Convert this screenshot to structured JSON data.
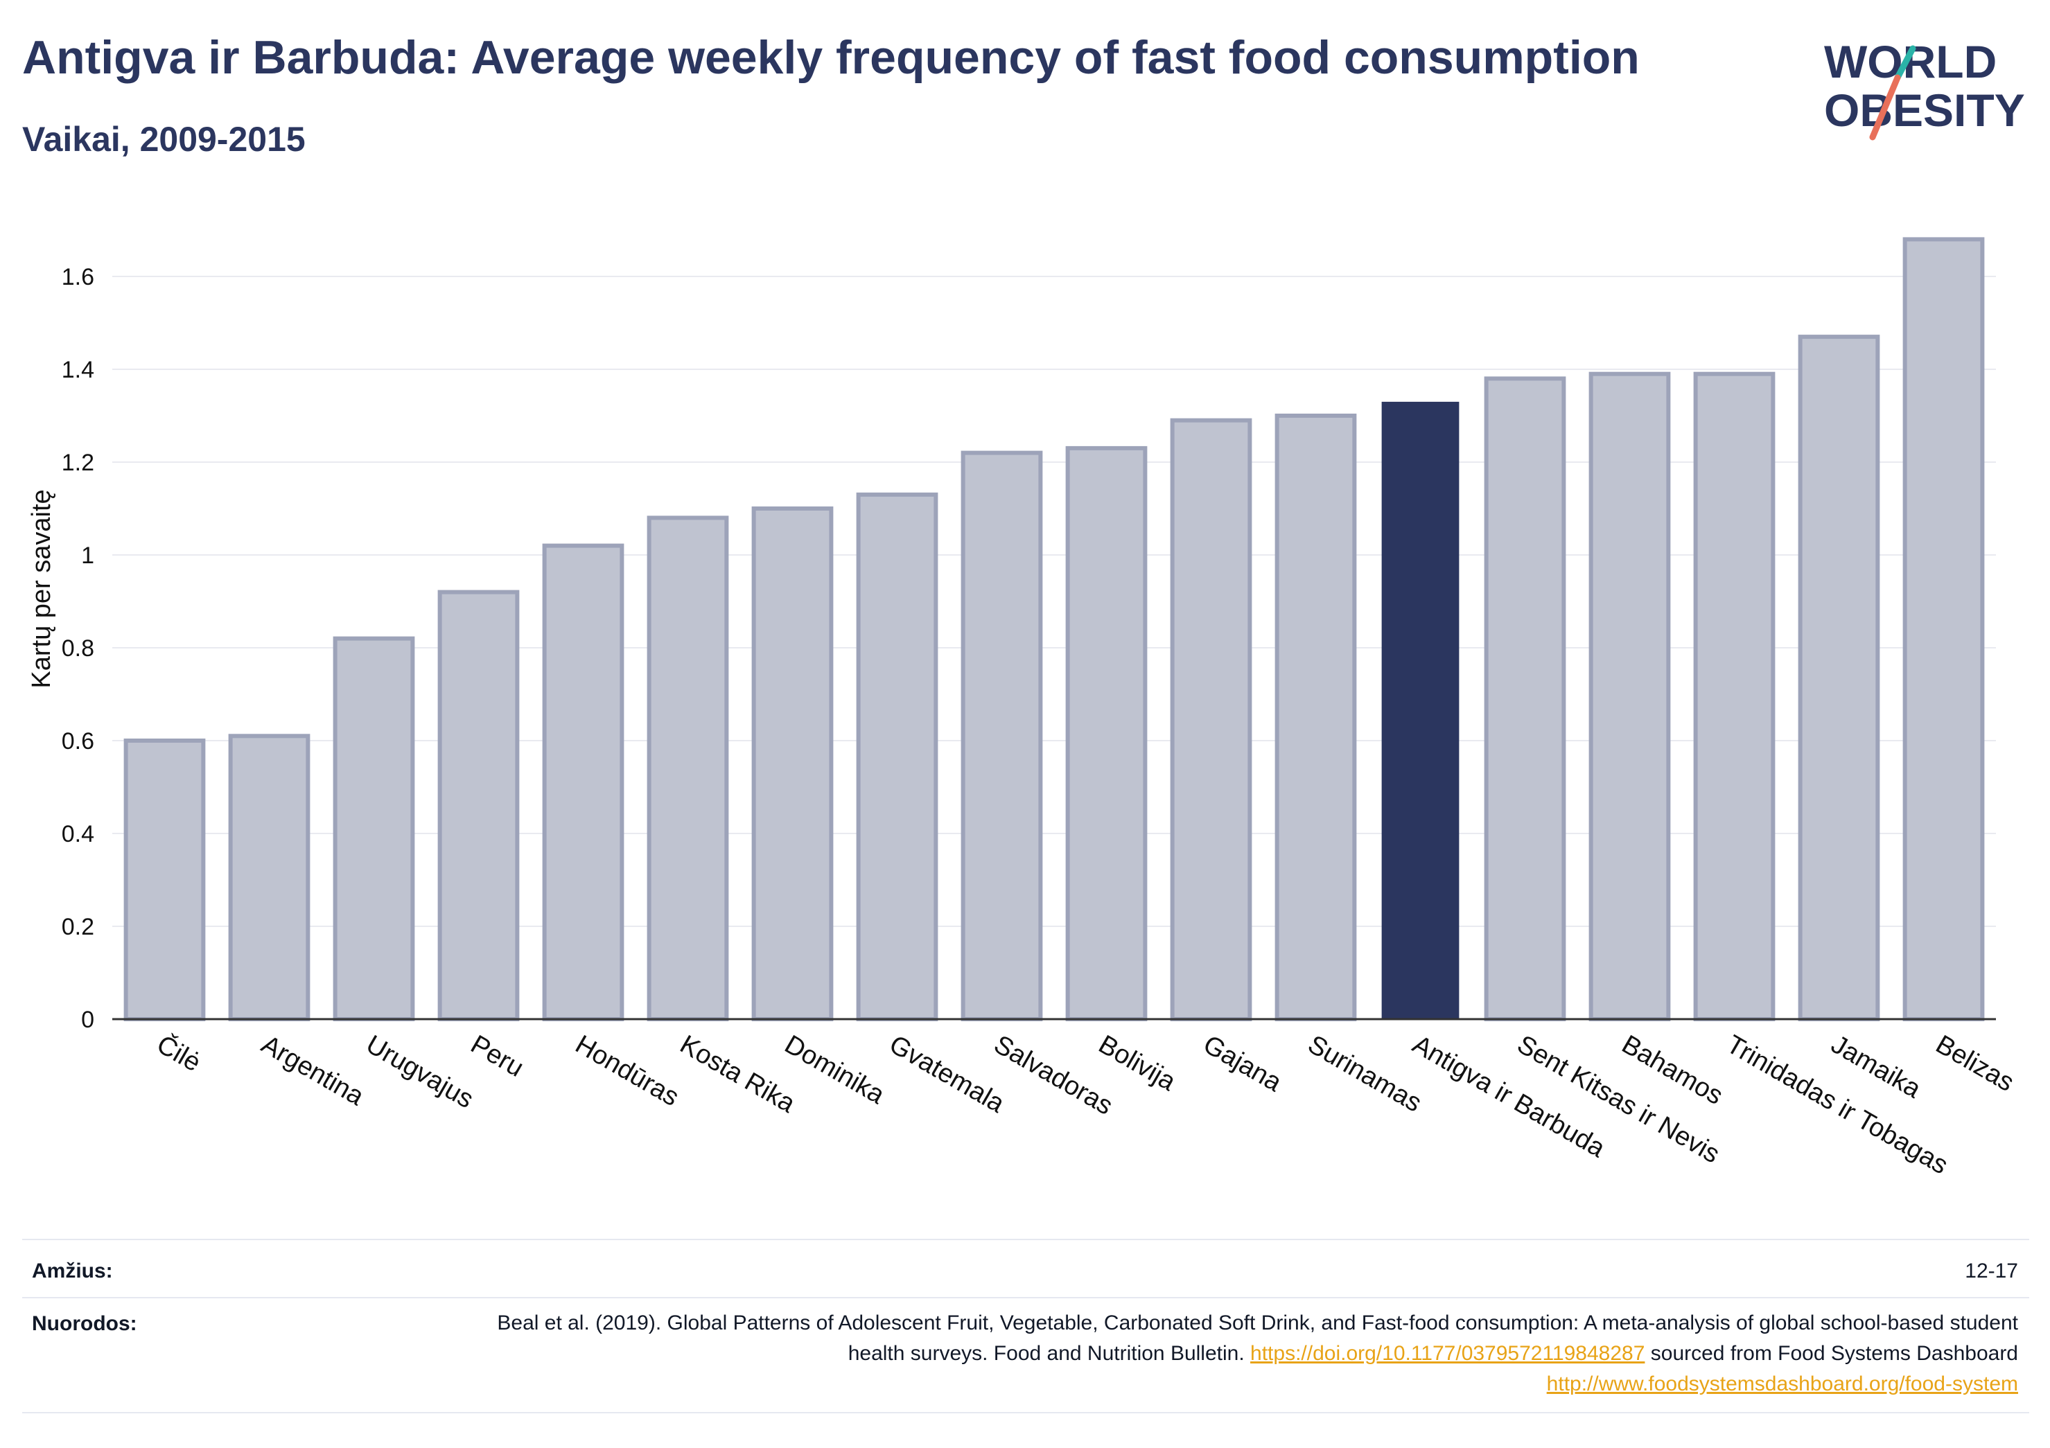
{
  "header": {
    "title": "Antigva ir Barbuda: Average weekly frequency of fast food consumption",
    "subtitle": "Vaikai, 2009-2015"
  },
  "logo": {
    "line1": "WORLD",
    "line2": "OBESITY",
    "text_color": "#2b365f",
    "slash_colors": [
      "#e8705a",
      "#2bb3a8"
    ]
  },
  "chart_data": {
    "type": "bar",
    "ylabel": "Kartų per savaitę",
    "xlabel": "",
    "ylim": [
      0,
      1.7
    ],
    "yticks": [
      0,
      0.2,
      0.4,
      0.6,
      0.8,
      1,
      1.2,
      1.4,
      1.6
    ],
    "ytick_labels": [
      "0",
      "0.2",
      "0.4",
      "0.6",
      "0.8",
      "1",
      "1.2",
      "1.4",
      "1.6"
    ],
    "grid": true,
    "categories": [
      "Čilė",
      "Argentina",
      "Urugvajus",
      "Peru",
      "Hondūras",
      "Kosta Rika",
      "Dominika",
      "Gvatemala",
      "Salvadoras",
      "Bolivija",
      "Gajana",
      "Surinamas",
      "Antigva ir Barbuda",
      "Sent Kitsas ir Nevis",
      "Bahamos",
      "Trinidadas ir Tobagas",
      "Jamaika",
      "Belizas"
    ],
    "values": [
      0.6,
      0.61,
      0.82,
      0.92,
      1.02,
      1.08,
      1.1,
      1.13,
      1.22,
      1.23,
      1.29,
      1.3,
      1.33,
      1.38,
      1.39,
      1.39,
      1.47,
      1.68
    ],
    "highlight": "Antigva ir Barbuda",
    "colors": {
      "bar": "#bfc3d0",
      "bar_border": "#9da3b9",
      "highlight": "#2b365f",
      "grid": "#e9eaf0",
      "axis": "#333333"
    }
  },
  "footer": {
    "age_label": "Amžius:",
    "age_value": "12-17",
    "refs_label": "Nuorodos:",
    "refs_text_1": "Beal et al. (2019). Global Patterns of Adolescent Fruit, Vegetable, Carbonated Soft Drink, and Fast-food consumption: A meta-analysis of global school-based student health surveys. Food and Nutrition Bulletin.",
    "refs_link_1": "https://doi.org/10.1177/0379572119848287",
    "refs_text_2": "sourced from Food Systems Dashboard",
    "refs_link_2": "http://www.foodsystemsdashboard.org/food-system"
  }
}
